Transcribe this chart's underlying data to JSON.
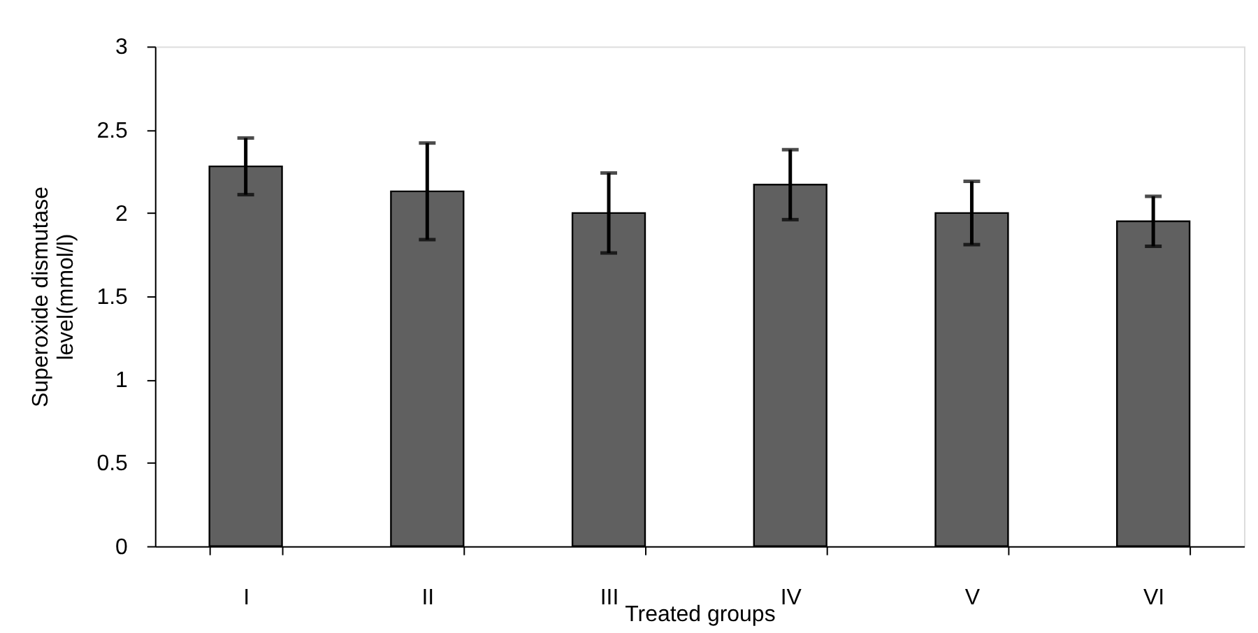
{
  "chart_data": {
    "type": "bar",
    "categories": [
      "I",
      "II",
      "III",
      "IV",
      "V",
      "VI"
    ],
    "values": [
      2.28,
      2.13,
      2.0,
      2.17,
      2.0,
      1.95
    ],
    "color": "#606060",
    "errors": [
      [
        2.11,
        2.45
      ],
      [
        1.84,
        2.42
      ],
      [
        1.76,
        2.24
      ],
      [
        1.96,
        2.38
      ],
      [
        1.81,
        2.19
      ],
      [
        1.8,
        2.1
      ]
    ],
    "xlabel": "Treated groups",
    "ylabel": "Superoxide dismutase level(mmol/l)",
    "ylim": [
      0,
      3
    ],
    "yticks": [
      0,
      0.5,
      1,
      1.5,
      2,
      2.5,
      3
    ],
    "grid": false
  }
}
